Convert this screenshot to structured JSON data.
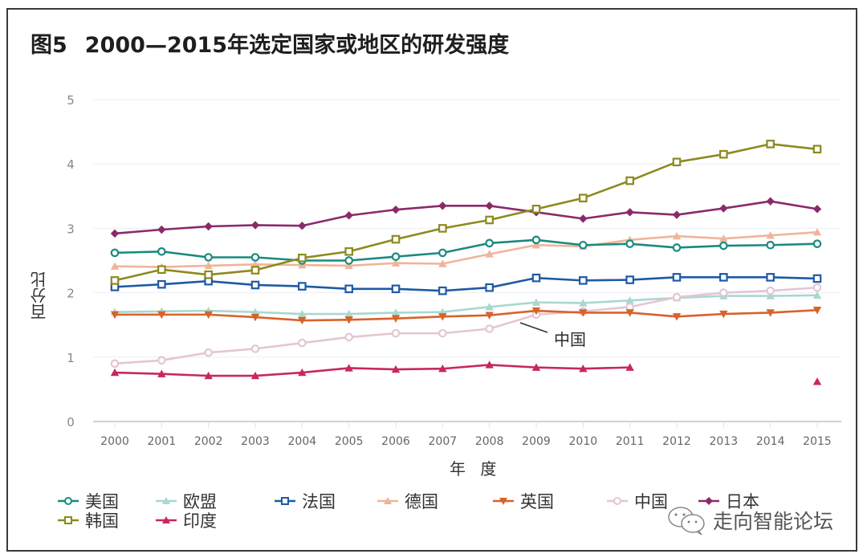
{
  "figure": {
    "number": "图5",
    "title": "2000—2015年选定国家或地区的研发强度"
  },
  "watermark": {
    "icon": "wechat-icon",
    "text": "走向智能论坛"
  },
  "chart_data": {
    "type": "line",
    "title": "2000—2015年选定国家或地区的研发强度",
    "xlabel": "年 度",
    "ylabel": "百分比",
    "ylim": [
      0,
      5
    ],
    "yticks": [
      "0",
      "1",
      "2",
      "3",
      "4",
      "5"
    ],
    "x": [
      "2000",
      "2001",
      "2002",
      "2003",
      "2004",
      "2005",
      "2006",
      "2007",
      "2008",
      "2009",
      "2010",
      "2011",
      "2012",
      "2013",
      "2014",
      "2015"
    ],
    "grid": true,
    "legend_position": "bottom",
    "annotation": "中国",
    "series": [
      {
        "name": "美国",
        "color": "#1a8a7e",
        "marker": "circle",
        "values": [
          2.62,
          2.64,
          2.55,
          2.55,
          2.5,
          2.5,
          2.56,
          2.62,
          2.77,
          2.82,
          2.74,
          2.76,
          2.7,
          2.73,
          2.74,
          2.76
        ]
      },
      {
        "name": "欧盟",
        "color": "#a8d8d0",
        "marker": "triangle-up",
        "values": [
          1.7,
          1.71,
          1.72,
          1.7,
          1.67,
          1.67,
          1.69,
          1.7,
          1.78,
          1.85,
          1.84,
          1.88,
          1.92,
          1.95,
          1.95,
          1.96
        ]
      },
      {
        "name": "法国",
        "color": "#1f5aa6",
        "marker": "square",
        "values": [
          2.09,
          2.13,
          2.18,
          2.12,
          2.1,
          2.06,
          2.06,
          2.03,
          2.08,
          2.23,
          2.19,
          2.2,
          2.24,
          2.24,
          2.24,
          2.22
        ]
      },
      {
        "name": "德国",
        "color": "#f0b49a",
        "marker": "triangle-up",
        "values": [
          2.41,
          2.4,
          2.42,
          2.44,
          2.43,
          2.42,
          2.46,
          2.45,
          2.6,
          2.74,
          2.72,
          2.82,
          2.88,
          2.84,
          2.89,
          2.94
        ]
      },
      {
        "name": "英国",
        "color": "#d9622a",
        "marker": "triangle-down",
        "values": [
          1.66,
          1.66,
          1.66,
          1.62,
          1.57,
          1.58,
          1.6,
          1.63,
          1.65,
          1.72,
          1.69,
          1.69,
          1.63,
          1.67,
          1.69,
          1.73
        ]
      },
      {
        "name": "中国",
        "color": "#e3c6d2",
        "marker": "circle",
        "values": [
          0.9,
          0.95,
          1.07,
          1.13,
          1.22,
          1.31,
          1.37,
          1.37,
          1.44,
          1.66,
          1.71,
          1.78,
          1.93,
          2.0,
          2.03,
          2.08
        ]
      },
      {
        "name": "日本",
        "color": "#8a2a6a",
        "marker": "diamond",
        "values": [
          2.92,
          2.98,
          3.03,
          3.05,
          3.04,
          3.2,
          3.29,
          3.35,
          3.35,
          3.25,
          3.15,
          3.25,
          3.21,
          3.31,
          3.42,
          3.3
        ]
      },
      {
        "name": "韩国",
        "color": "#8c8a1e",
        "marker": "square",
        "values": [
          2.19,
          2.36,
          2.28,
          2.35,
          2.54,
          2.64,
          2.83,
          3.0,
          3.13,
          3.3,
          3.47,
          3.74,
          4.03,
          4.15,
          4.31,
          4.23
        ]
      },
      {
        "name": "印度",
        "color": "#c8285a",
        "marker": "triangle-up",
        "values": [
          0.76,
          0.74,
          0.71,
          0.71,
          0.76,
          0.83,
          0.81,
          0.82,
          0.88,
          0.84,
          0.82,
          0.84,
          null,
          null,
          null,
          0.62
        ]
      }
    ]
  }
}
